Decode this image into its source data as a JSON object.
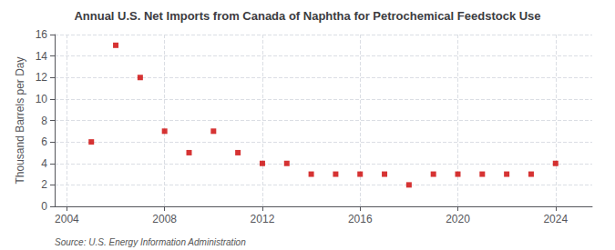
{
  "chart_data": {
    "type": "scatter",
    "title": "Annual U.S. Net Imports from Canada of Naphtha for Petrochemical Feedstock Use",
    "y_label": "Thousand Barrels per Day",
    "annotations": [
      "Source: U.S. Energy Information Administration"
    ],
    "x": [
      2005,
      2006,
      2007,
      2008,
      2009,
      2010,
      2011,
      2012,
      2013,
      2014,
      2015,
      2016,
      2017,
      2018,
      2019,
      2020,
      2021,
      2022,
      2023,
      2024
    ],
    "values": [
      6.0,
      15.0,
      12.0,
      7.0,
      5.0,
      7.0,
      5.0,
      4.0,
      4.0,
      3.0,
      3.0,
      3.0,
      3.0,
      2.0,
      3.0,
      3.0,
      3.0,
      3.0,
      3.0,
      4.0
    ],
    "color": "#cc0000",
    "marker": "square",
    "xlim": [
      2003.5,
      2025.5
    ],
    "xticks": [
      2004,
      2008,
      2012,
      2016,
      2020,
      2024
    ],
    "ylim": [
      0,
      16
    ],
    "yticks": [
      0,
      2,
      4,
      6,
      8,
      10,
      12,
      14,
      16
    ],
    "grid": true
  }
}
